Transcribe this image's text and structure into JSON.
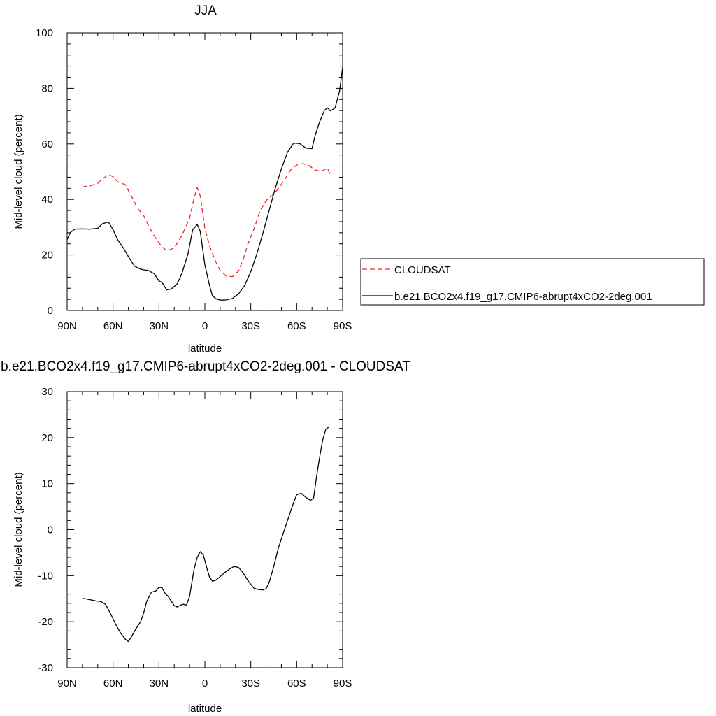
{
  "chart_data": [
    {
      "type": "line",
      "title": "JJA",
      "xlabel": "latitude",
      "ylabel": "Mid-level cloud (percent)",
      "xticks": [
        "90N",
        "60N",
        "30N",
        "0",
        "30S",
        "60S",
        "90S"
      ],
      "xlim": [
        90,
        -90
      ],
      "ylim": [
        0,
        100
      ],
      "yticks": [
        "0",
        "20",
        "40",
        "60",
        "80",
        "100"
      ],
      "grid": false,
      "legend_position": "right",
      "series": [
        {
          "name": "CLOUDSAT",
          "color": "#e8262b",
          "dash": "dashed",
          "x": [
            80,
            75,
            70,
            67,
            63,
            60,
            57,
            52,
            48,
            44,
            40,
            36,
            32,
            28,
            25,
            20,
            15,
            10,
            7,
            5,
            3,
            0,
            -3,
            -7,
            -10,
            -14,
            -18,
            -22,
            -25,
            -28,
            -32,
            -36,
            -40,
            -44,
            -48,
            -52,
            -56,
            -60,
            -64,
            -68,
            -72,
            -76,
            -80,
            -82
          ],
          "y": [
            44.5,
            44.9,
            45.8,
            47.3,
            49.0,
            48.2,
            46.4,
            45.3,
            41.2,
            36.8,
            34.2,
            29.6,
            25.9,
            22.9,
            21.5,
            22.5,
            27.0,
            33.2,
            40.6,
            44.3,
            41.2,
            29.6,
            23.3,
            17.7,
            14.4,
            12.4,
            12.2,
            14.2,
            18.3,
            23.8,
            29.2,
            35.8,
            39.6,
            41.4,
            43.9,
            47.0,
            50.6,
            52.4,
            52.9,
            52.2,
            50.6,
            50.1,
            51.3,
            48.9
          ]
        },
        {
          "name": "b.e21.BCO2x4.f19_g17.CMIP6-abrupt4xCO2-2deg.001",
          "color": "#000000",
          "dash": "solid",
          "x": [
            90,
            88,
            85,
            80,
            75,
            70,
            67,
            63,
            60,
            57,
            53,
            50,
            46,
            43,
            40,
            37,
            33,
            30,
            28,
            25,
            22,
            18,
            15,
            11,
            8,
            5,
            3,
            0,
            -3,
            -5,
            -8,
            -11,
            -14,
            -18,
            -22,
            -26,
            -30,
            -34,
            -38,
            -42,
            -46,
            -50,
            -54,
            -58,
            -62,
            -66,
            -70,
            -72,
            -75,
            -78,
            -80,
            -82,
            -85,
            -88,
            -90
          ],
          "y": [
            25.5,
            28.0,
            29.3,
            29.4,
            29.3,
            29.6,
            31.2,
            31.9,
            29.1,
            25.5,
            22.3,
            19.4,
            16.0,
            15.1,
            14.6,
            14.4,
            13.2,
            10.6,
            10.1,
            7.4,
            7.7,
            9.6,
            13.4,
            20.4,
            29.0,
            31.0,
            28.5,
            16.4,
            9.1,
            5.2,
            4.0,
            3.7,
            3.8,
            4.3,
            6.0,
            9.0,
            14.0,
            20.4,
            28.0,
            36.0,
            44.0,
            51.0,
            57.0,
            60.3,
            60.1,
            58.5,
            58.3,
            63.0,
            68.0,
            72.0,
            73.0,
            71.9,
            72.9,
            79.0,
            87.6
          ]
        }
      ]
    },
    {
      "type": "line",
      "title": "b.e21.BCO2x4.f19_g17.CMIP6-abrupt4xCO2-2deg.001 - CLOUDSAT",
      "xlabel": "latitude",
      "ylabel": "Mid-level cloud (percent)",
      "xticks": [
        "90N",
        "60N",
        "30N",
        "0",
        "30S",
        "60S",
        "90S"
      ],
      "xlim": [
        90,
        -90
      ],
      "ylim": [
        -30,
        30
      ],
      "yticks": [
        "-30",
        "-20",
        "-10",
        "0",
        "10",
        "20",
        "30"
      ],
      "grid": false,
      "series": [
        {
          "color": "#000000",
          "dash": "solid",
          "x": [
            80,
            75,
            71,
            68,
            65,
            62,
            58,
            55,
            52,
            50,
            48,
            45,
            42,
            40,
            38,
            35,
            32,
            30,
            28,
            26,
            24,
            22,
            20,
            18,
            16,
            14,
            12,
            10,
            7,
            5,
            3,
            1,
            -1,
            -3,
            -5,
            -7,
            -10,
            -13,
            -16,
            -19,
            -22,
            -25,
            -28,
            -32,
            -35,
            -38,
            -40,
            -42,
            -45,
            -48,
            -51,
            -54,
            -57,
            -60,
            -63,
            -66,
            -69,
            -71,
            -73,
            -75,
            -77,
            -79,
            -81
          ],
          "y": [
            -14.9,
            -15.2,
            -15.5,
            -15.6,
            -16.2,
            -18.0,
            -20.7,
            -22.5,
            -23.8,
            -24.3,
            -23.3,
            -21.5,
            -20.0,
            -18.1,
            -15.6,
            -13.6,
            -13.3,
            -12.5,
            -12.6,
            -13.8,
            -14.5,
            -15.5,
            -16.5,
            -16.8,
            -16.4,
            -16.2,
            -16.4,
            -14.5,
            -8.5,
            -6.0,
            -4.8,
            -5.5,
            -8.0,
            -10.3,
            -11.2,
            -11.0,
            -10.2,
            -9.3,
            -8.6,
            -8.0,
            -8.2,
            -9.4,
            -11.0,
            -12.7,
            -13.0,
            -13.1,
            -12.8,
            -11.5,
            -8.0,
            -4.0,
            -1.0,
            2.0,
            5.0,
            7.6,
            7.9,
            7.0,
            6.4,
            6.8,
            11.6,
            15.8,
            19.5,
            21.8,
            22.3
          ]
        }
      ]
    }
  ]
}
